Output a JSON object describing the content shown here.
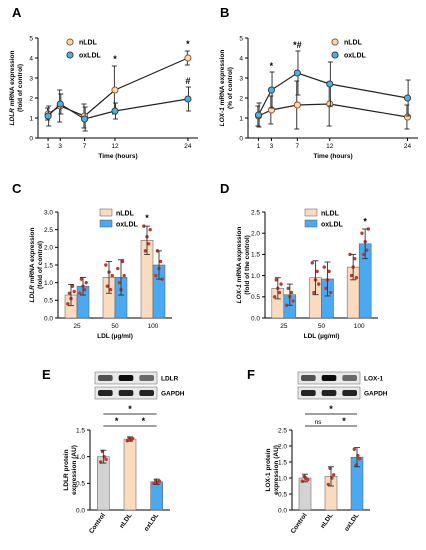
{
  "panels": {
    "A": "A",
    "B": "B",
    "C": "C",
    "D": "D",
    "E": "E",
    "F": "F"
  },
  "chart_data": [
    {
      "panel": "A",
      "type": "line",
      "ylabel_italic": "LDLR",
      "ylabel_rest": " mRNA expression",
      "ylabel2": "(fold of control)",
      "xlabel": "Time (hours)",
      "x": [
        1,
        3,
        7,
        12,
        24
      ],
      "xticks": [
        "1",
        "3",
        "7",
        "12",
        "24"
      ],
      "ylim": [
        0,
        5
      ],
      "yticks": [
        "0",
        "1",
        "2",
        "3",
        "4",
        "5"
      ],
      "series": [
        {
          "name": "nLDL",
          "values": [
            1.2,
            1.6,
            1.1,
            2.4,
            4.0
          ],
          "err": [
            0.3,
            0.8,
            0.6,
            1.2,
            0.35
          ],
          "color": "#f4d9b4",
          "stroke": "#8b4a1c"
        },
        {
          "name": "oxLDL",
          "values": [
            1.1,
            1.7,
            0.95,
            1.35,
            1.95
          ],
          "err": [
            0.5,
            0.5,
            0.6,
            0.4,
            0.6
          ],
          "color": "#4ab3e5",
          "stroke": "#333333"
        }
      ],
      "annotations": [
        {
          "x": 12,
          "y": 3.8,
          "text": "*"
        },
        {
          "x": 24,
          "y": 4.55,
          "text": "*"
        },
        {
          "x": 24,
          "y": 2.7,
          "text": "#"
        }
      ]
    },
    {
      "panel": "B",
      "type": "line",
      "ylabel_italic": "LOX-1",
      "ylabel_rest": " mRNA expression",
      "ylabel2": "(% of control)",
      "xlabel": "Time (hours)",
      "x": [
        1,
        3,
        7,
        12,
        24
      ],
      "xticks": [
        "1",
        "3",
        "7",
        "12",
        "24"
      ],
      "ylim": [
        0,
        5
      ],
      "yticks": [
        "0",
        "1",
        "2",
        "3",
        "4",
        "5"
      ],
      "series": [
        {
          "name": "nLDL",
          "values": [
            1.1,
            1.4,
            1.65,
            1.7,
            1.05
          ],
          "err": [
            0.5,
            0.7,
            1.2,
            1.1,
            0.6
          ],
          "color": "#f4d9b4",
          "stroke": "#8b4a1c"
        },
        {
          "name": "oxLDL",
          "values": [
            1.15,
            2.4,
            3.25,
            2.7,
            2.0
          ],
          "err": [
            0.6,
            0.9,
            1.1,
            1.1,
            0.9
          ],
          "color": "#4ab3e5",
          "stroke": "#333333"
        }
      ],
      "annotations": [
        {
          "x": 3,
          "y": 3.45,
          "text": "*"
        },
        {
          "x": 7,
          "y": 4.5,
          "text": "*#"
        }
      ]
    },
    {
      "panel": "C",
      "type": "bar",
      "ylabel_italic": "LDLR",
      "ylabel_rest": " mRNA expression",
      "ylabel2": "(fold of control)",
      "xlabel": "LDL (µg/ml)",
      "categories": [
        "25",
        "50",
        "100"
      ],
      "ylim": [
        0,
        3
      ],
      "yticks": [
        "0.0",
        "0.5",
        "1.0",
        "1.5",
        "2.0",
        "2.5",
        "3.0"
      ],
      "series": [
        {
          "name": "nLDL",
          "values": [
            0.65,
            1.15,
            2.2
          ],
          "err": [
            0.3,
            0.45,
            0.4
          ],
          "color": "#f9dcc0",
          "points": [
            [
              0.4,
              0.7,
              0.55,
              0.9,
              0.75
            ],
            [
              1.5,
              0.9,
              1.3,
              0.8,
              1.2
            ],
            [
              2.6,
              1.9,
              2.3,
              2.1,
              2.5
            ]
          ]
        },
        {
          "name": "oxLDL",
          "values": [
            0.9,
            1.15,
            1.5
          ],
          "err": [
            0.25,
            0.5,
            0.4
          ],
          "color": "#4aa9f0",
          "points": [
            [
              0.7,
              1.1,
              0.9,
              0.8,
              1.0
            ],
            [
              1.4,
              1.0,
              0.8,
              1.6,
              1.2
            ],
            [
              1.2,
              1.9,
              1.4,
              1.6,
              1.1
            ]
          ]
        }
      ],
      "annotations": [
        {
          "category": "100",
          "series": 0,
          "y": 2.75,
          "text": "*"
        }
      ]
    },
    {
      "panel": "D",
      "type": "bar",
      "ylabel_italic": "LOX-1",
      "ylabel_rest": " mRNA expression",
      "ylabel2": "(fold of the control)",
      "xlabel": "LDL (µg/ml)",
      "categories": [
        "25",
        "50",
        "100"
      ],
      "ylim": [
        0,
        2.5
      ],
      "yticks": [
        "0.0",
        "0.5",
        "1.0",
        "1.5",
        "2.0",
        "2.5"
      ],
      "series": [
        {
          "name": "nLDL",
          "values": [
            0.7,
            0.95,
            1.2
          ],
          "err": [
            0.25,
            0.4,
            0.3
          ],
          "color": "#f9dcc0",
          "points": [
            [
              0.5,
              0.9,
              0.7,
              0.6,
              0.8
            ],
            [
              1.3,
              0.6,
              0.9,
              1.1,
              0.8
            ],
            [
              1.5,
              1.0,
              1.2,
              1.4,
              0.95
            ]
          ]
        },
        {
          "name": "oxLDL",
          "values": [
            0.55,
            0.92,
            1.75
          ],
          "err": [
            0.25,
            0.4,
            0.35
          ],
          "color": "#4aa9f0",
          "points": [
            [
              0.3,
              0.7,
              0.5,
              0.6,
              0.4
            ],
            [
              1.2,
              0.7,
              0.9,
              1.1,
              0.6
            ],
            [
              2.0,
              1.5,
              1.8,
              1.6,
              2.1
            ]
          ]
        }
      ],
      "annotations": [
        {
          "category": "100",
          "series": 1,
          "y": 2.2,
          "text": "*"
        }
      ]
    },
    {
      "panel": "E",
      "type": "bar",
      "ylabel": "LDLR protein",
      "ylabel2": "expression (AU)",
      "categories": [
        "Control",
        "nLDL",
        "oxLDL"
      ],
      "ylim": [
        0,
        1.5
      ],
      "yticks": [
        "0.0",
        "0.5",
        "1.0",
        "1.5"
      ],
      "values": [
        1.0,
        1.33,
        0.53
      ],
      "err": [
        0.12,
        0.04,
        0.05
      ],
      "colors": [
        "#d3d3d3",
        "#f9dcc0",
        "#4aa9f0"
      ],
      "points": [
        [
          0.9,
          1.1,
          1.0,
          0.95
        ],
        [
          1.3,
          1.35,
          1.32,
          1.34
        ],
        [
          0.5,
          0.55,
          0.52,
          0.54
        ]
      ],
      "blot": {
        "bands": [
          "LDLR",
          "GAPDH"
        ]
      },
      "significance": [
        {
          "from": 0,
          "to": 1,
          "text": "*",
          "level": 1
        },
        {
          "from": 1,
          "to": 2,
          "text": "*",
          "level": 1
        },
        {
          "from": 0,
          "to": 2,
          "text": "*",
          "level": 2
        }
      ]
    },
    {
      "panel": "F",
      "type": "bar",
      "ylabel": "LOX-1 protein",
      "ylabel2": "expression (AU)",
      "categories": [
        "Control",
        "nLDL",
        "oxLDL"
      ],
      "ylim": [
        0,
        2.5
      ],
      "yticks": [
        "0.0",
        "0.5",
        "1.0",
        "1.5",
        "2.0",
        "2.5"
      ],
      "values": [
        1.0,
        1.05,
        1.65
      ],
      "err": [
        0.12,
        0.3,
        0.3
      ],
      "colors": [
        "#d3d3d3",
        "#f9dcc0",
        "#4aa9f0"
      ],
      "points": [
        [
          0.9,
          1.05,
          1.0,
          0.95
        ],
        [
          0.8,
          1.3,
          1.0,
          1.1
        ],
        [
          1.9,
          1.4,
          1.7,
          1.6
        ]
      ],
      "blot": {
        "bands": [
          "LOX-1",
          "GAPDH"
        ]
      },
      "significance": [
        {
          "from": 0,
          "to": 1,
          "text": "ns",
          "level": 1
        },
        {
          "from": 1,
          "to": 2,
          "text": "*",
          "level": 1
        },
        {
          "from": 0,
          "to": 2,
          "text": "*",
          "level": 2
        }
      ]
    }
  ]
}
